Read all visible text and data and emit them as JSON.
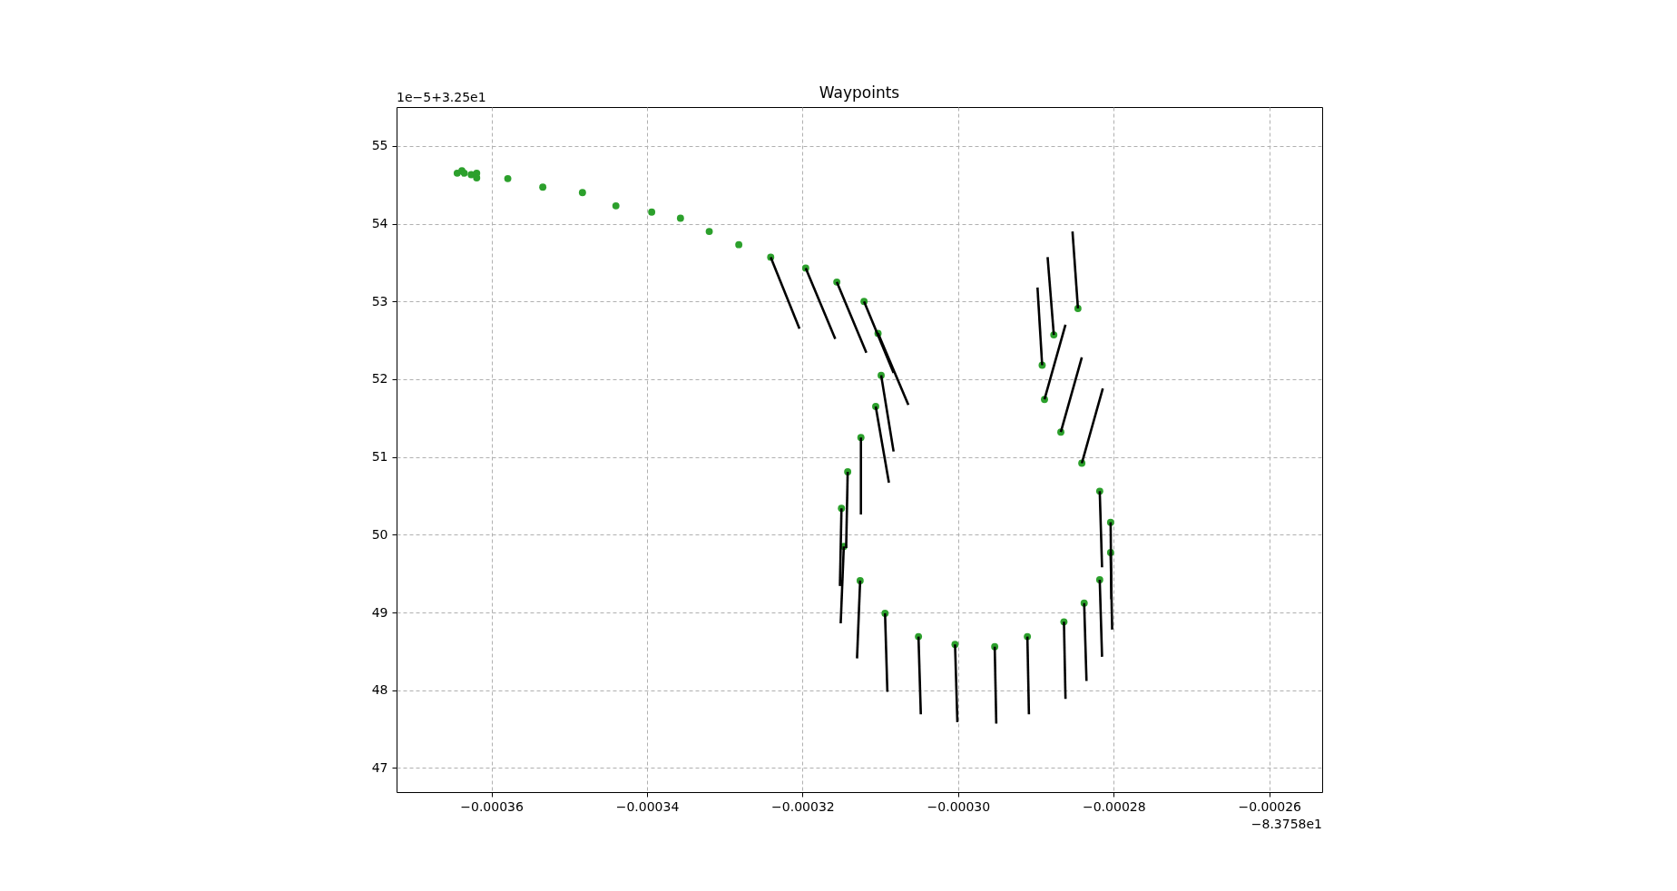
{
  "chart_data": {
    "type": "scatter",
    "title": "Waypoints",
    "annotations": [
      "1e−5+3.25e1",
      "−8.3758e1"
    ],
    "xlim": [
      -0.0003722,
      -0.0002532
    ],
    "ylim": [
      46.69,
      55.5
    ],
    "xticks": [
      {
        "value": -0.00036,
        "label": "−0.00036"
      },
      {
        "value": -0.00034,
        "label": "−0.00034"
      },
      {
        "value": -0.00032,
        "label": "−0.00032"
      },
      {
        "value": -0.0003,
        "label": "−0.00030"
      },
      {
        "value": -0.00028,
        "label": "−0.00028"
      },
      {
        "value": -0.00026,
        "label": "−0.00026"
      }
    ],
    "yticks": [
      47,
      48,
      49,
      50,
      51,
      52,
      53,
      54,
      55
    ],
    "grid": true,
    "series": [
      {
        "color": "#2ca02c",
        "marker": "circle",
        "x": [
          -0.0003644,
          -0.0003638,
          -0.0003635,
          -0.0003626,
          -0.0003619,
          -0.0003619,
          -0.0003579,
          -0.0003534,
          -0.0003483,
          -0.000344,
          -0.0003394,
          -0.0003357,
          -0.000332,
          -0.0003282,
          -0.0003241,
          -0.0003196,
          -0.0003156,
          -0.0003121,
          -0.0003103,
          -0.0003099,
          -0.0003106,
          -0.0003125,
          -0.0003142,
          -0.000315,
          -0.0003147,
          -0.0003126,
          -0.0003094,
          -0.0003051,
          -0.0003004,
          -0.0002953,
          -0.0002911,
          -0.0002864,
          -0.0002838,
          -0.0002818,
          -0.0002804,
          -0.0002804,
          -0.0002818,
          -0.0002841,
          -0.0002868,
          -0.0002889,
          -0.0002892,
          -0.0002877,
          -0.0002846
        ],
        "values": [
          54.65,
          54.68,
          54.65,
          54.63,
          54.65,
          54.59,
          54.58,
          54.47,
          54.4,
          54.23,
          54.15,
          54.07,
          53.9,
          53.73,
          53.57,
          53.43,
          53.25,
          53.0,
          52.59,
          52.05,
          51.65,
          51.25,
          50.81,
          50.34,
          49.85,
          49.41,
          48.99,
          48.69,
          48.59,
          48.56,
          48.69,
          48.88,
          49.12,
          49.42,
          49.77,
          50.16,
          50.56,
          50.92,
          51.32,
          51.74,
          52.18,
          52.57,
          52.91
        ]
      },
      {
        "type": "line",
        "color": "#000000",
        "x": [
          -0.0003241,
          -0.0003204
        ],
        "values": [
          53.57,
          52.65
        ]
      },
      {
        "type": "line",
        "color": "#000000",
        "x": [
          -0.0003196,
          -0.0003158
        ],
        "values": [
          53.43,
          52.52
        ]
      },
      {
        "type": "line",
        "color": "#000000",
        "x": [
          -0.0003156,
          -0.0003118
        ],
        "values": [
          53.25,
          52.34
        ]
      },
      {
        "type": "line",
        "color": "#000000",
        "x": [
          -0.0003121,
          -0.0003083
        ],
        "values": [
          53.0,
          52.08
        ]
      },
      {
        "type": "line",
        "color": "#000000",
        "x": [
          -0.0003103,
          -0.0003064
        ],
        "values": [
          52.59,
          51.67
        ]
      },
      {
        "type": "line",
        "color": "#000000",
        "x": [
          -0.0003099,
          -0.0003083
        ],
        "values": [
          52.05,
          51.07
        ]
      },
      {
        "type": "line",
        "color": "#000000",
        "x": [
          -0.0003106,
          -0.0003089
        ],
        "values": [
          51.65,
          50.67
        ]
      },
      {
        "type": "line",
        "color": "#000000",
        "x": [
          -0.0003125,
          -0.0003125
        ],
        "values": [
          51.25,
          50.26
        ]
      },
      {
        "type": "line",
        "color": "#000000",
        "x": [
          -0.0003142,
          -0.0003144
        ],
        "values": [
          50.81,
          49.83
        ]
      },
      {
        "type": "line",
        "color": "#000000",
        "x": [
          -0.000315,
          -0.0003152
        ],
        "values": [
          50.34,
          49.34
        ]
      },
      {
        "type": "line",
        "color": "#000000",
        "x": [
          -0.0003147,
          -0.0003151
        ],
        "values": [
          49.85,
          48.86
        ]
      },
      {
        "type": "line",
        "color": "#000000",
        "x": [
          -0.0003126,
          -0.000313
        ],
        "values": [
          49.41,
          48.41
        ]
      },
      {
        "type": "line",
        "color": "#000000",
        "x": [
          -0.0003094,
          -0.0003091
        ],
        "values": [
          48.99,
          47.98
        ]
      },
      {
        "type": "line",
        "color": "#000000",
        "x": [
          -0.0003051,
          -0.0003048
        ],
        "values": [
          48.69,
          47.69
        ]
      },
      {
        "type": "line",
        "color": "#000000",
        "x": [
          -0.0003004,
          -0.0003001
        ],
        "values": [
          48.59,
          47.59
        ]
      },
      {
        "type": "line",
        "color": "#000000",
        "x": [
          -0.0002953,
          -0.0002951
        ],
        "values": [
          48.56,
          47.57
        ]
      },
      {
        "type": "line",
        "color": "#000000",
        "x": [
          -0.0002911,
          -0.0002909
        ],
        "values": [
          48.69,
          47.69
        ]
      },
      {
        "type": "line",
        "color": "#000000",
        "x": [
          -0.0002864,
          -0.0002862
        ],
        "values": [
          48.88,
          47.89
        ]
      },
      {
        "type": "line",
        "color": "#000000",
        "x": [
          -0.0002838,
          -0.0002835
        ],
        "values": [
          49.12,
          48.12
        ]
      },
      {
        "type": "line",
        "color": "#000000",
        "x": [
          -0.0002818,
          -0.0002815
        ],
        "values": [
          49.42,
          48.43
        ]
      },
      {
        "type": "line",
        "color": "#000000",
        "x": [
          -0.0002804,
          -0.0002802
        ],
        "values": [
          49.77,
          48.78
        ]
      },
      {
        "type": "line",
        "color": "#000000",
        "x": [
          -0.0002804,
          -0.0002803
        ],
        "values": [
          50.16,
          49.17
        ]
      },
      {
        "type": "line",
        "color": "#000000",
        "x": [
          -0.0002818,
          -0.0002815
        ],
        "values": [
          50.56,
          49.58
        ]
      },
      {
        "type": "line",
        "color": "#000000",
        "x": [
          -0.0002841,
          -0.0002814
        ],
        "values": [
          50.92,
          51.88
        ]
      },
      {
        "type": "line",
        "color": "#000000",
        "x": [
          -0.0002868,
          -0.0002841
        ],
        "values": [
          51.32,
          52.28
        ]
      },
      {
        "type": "line",
        "color": "#000000",
        "x": [
          -0.0002889,
          -0.0002862
        ],
        "values": [
          51.74,
          52.7
        ]
      },
      {
        "type": "line",
        "color": "#000000",
        "x": [
          -0.0002892,
          -0.0002898
        ],
        "values": [
          52.18,
          53.18
        ]
      },
      {
        "type": "line",
        "color": "#000000",
        "x": [
          -0.0002877,
          -0.0002885
        ],
        "values": [
          52.57,
          53.57
        ]
      },
      {
        "type": "line",
        "color": "#000000",
        "x": [
          -0.0002846,
          -0.0002853
        ],
        "values": [
          52.91,
          53.9
        ]
      }
    ]
  }
}
